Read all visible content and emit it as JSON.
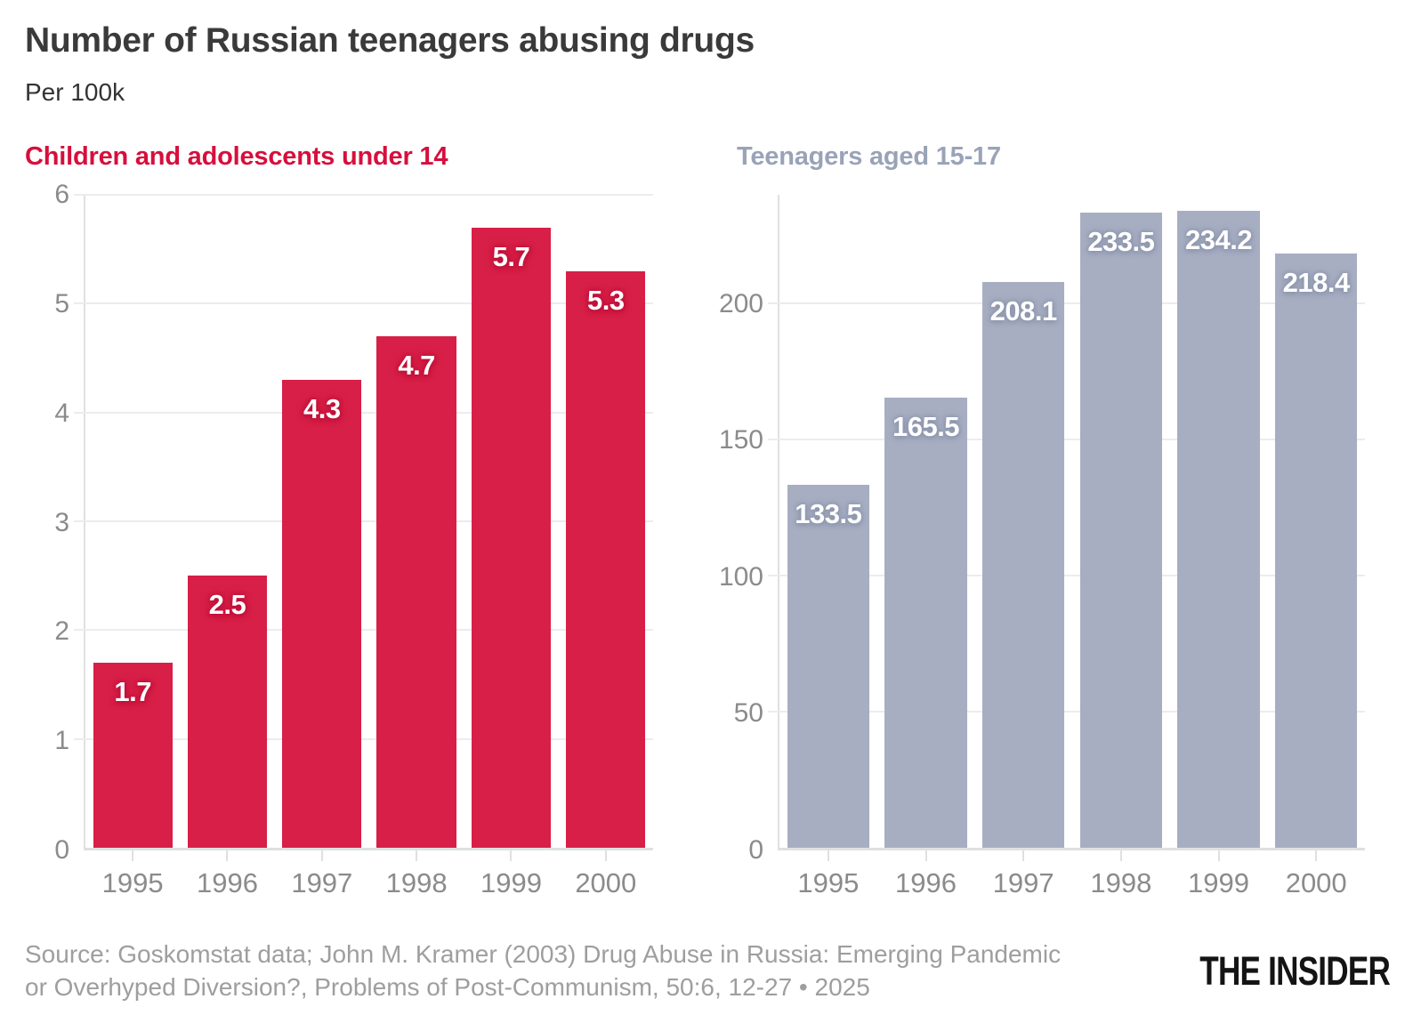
{
  "header": {
    "title": "Number of Russian teenagers abusing drugs",
    "subtitle": "Per 100k"
  },
  "chart_data": [
    {
      "type": "bar",
      "title": "Children and adolescents under 14",
      "categories": [
        "1995",
        "1996",
        "1997",
        "1998",
        "1999",
        "2000"
      ],
      "values": [
        1.7,
        2.5,
        4.3,
        4.7,
        5.7,
        5.3
      ],
      "bar_labels": [
        "1.7",
        "2.5",
        "4.3",
        "4.7",
        "5.7",
        "5.3"
      ],
      "yticks": [
        0,
        1,
        2,
        3,
        4,
        5,
        6
      ],
      "ylim": [
        0,
        6
      ],
      "render_max": 6,
      "grid": true,
      "legend": "none",
      "xlabel": "",
      "ylabel": "",
      "bar_color": "#d71f47",
      "halo_color": "#bc1038",
      "title_color": "#d60f3c"
    },
    {
      "type": "bar",
      "title": "Teenagers aged 15-17",
      "categories": [
        "1995",
        "1996",
        "1997",
        "1998",
        "1999",
        "2000"
      ],
      "values": [
        133.5,
        165.5,
        208.1,
        233.5,
        234.2,
        218.4
      ],
      "bar_labels": [
        "133.5",
        "165.5",
        "208.1",
        "233.5",
        "234.2",
        "218.4"
      ],
      "yticks": [
        0,
        50,
        100,
        150,
        200
      ],
      "ylim": [
        0,
        240
      ],
      "render_max": 240,
      "grid": true,
      "legend": "none",
      "xlabel": "",
      "ylabel": "",
      "bar_color": "#a7aec2",
      "halo_color": "#8c95ac",
      "title_color": "#99a3b8"
    }
  ],
  "footer": {
    "source_line1": "Source: Goskomstat data; John M. Kramer (2003) Drug Abuse in Russia: Emerging Pandemic",
    "source_line2": "or Overhyped Diversion?, Problems of Post-Communism, 50:6, 12-27 • 2025",
    "brand": "THE INSIDER"
  },
  "colors": {
    "title_text": "#3a3a3a",
    "axis_text": "#8b8b8b",
    "gridline": "#ececec",
    "axis_line": "#e0e0e0",
    "source_text": "#9e9e9e",
    "brand_text": "#141414",
    "background": "#ffffff"
  }
}
